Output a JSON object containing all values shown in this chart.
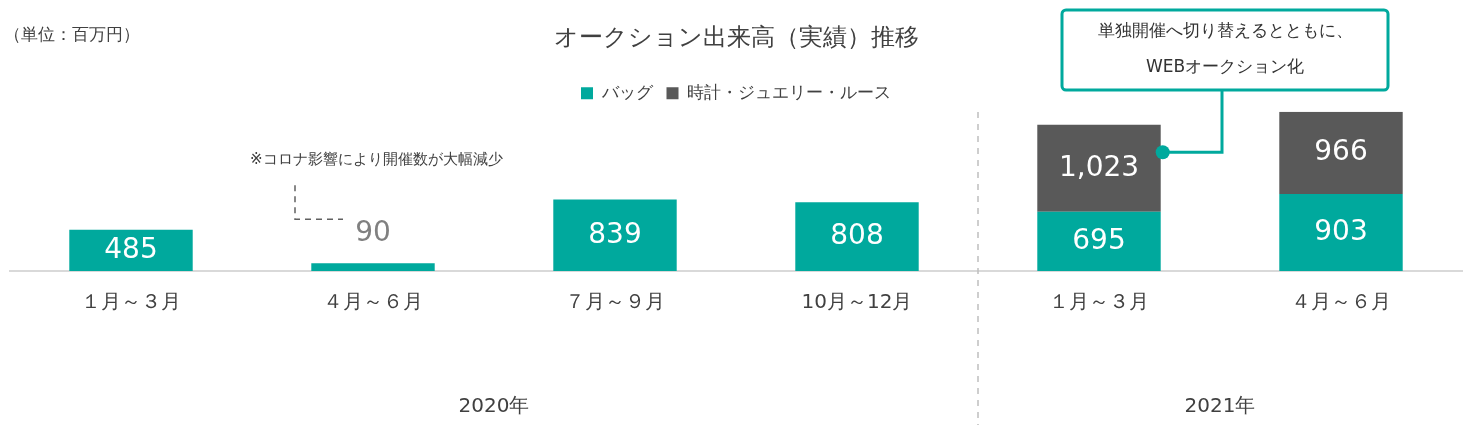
{
  "chart_data": {
    "type": "bar",
    "title": "オークション出来高（実績）推移",
    "categories": [
      "１月～３月",
      "４月～６月",
      "７月～９月",
      "10月～12月",
      "１月～３月",
      "４月～６月"
    ],
    "stacked": true,
    "legend": "top",
    "grid": false,
    "series": [
      {
        "name": "バッグ",
        "color": "#00a99d",
        "values": [
          485,
          90,
          839,
          808,
          695,
          903
        ],
        "value_labels": [
          "485",
          "90",
          "839",
          "808",
          "695",
          "903"
        ]
      },
      {
        "name": "時計・ジュエリー・ルース",
        "color": "#595959",
        "values": [
          null,
          null,
          null,
          null,
          1023,
          966
        ],
        "value_labels": [
          null,
          null,
          null,
          null,
          "1,023",
          "966"
        ]
      }
    ],
    "annotations": [
      "（単位：百万円）",
      "※コロナ影響により開催数が大幅減少",
      "単独開催へ切り替えるとともに、\nWEBオークション化",
      "2020年",
      "2021年"
    ]
  }
}
